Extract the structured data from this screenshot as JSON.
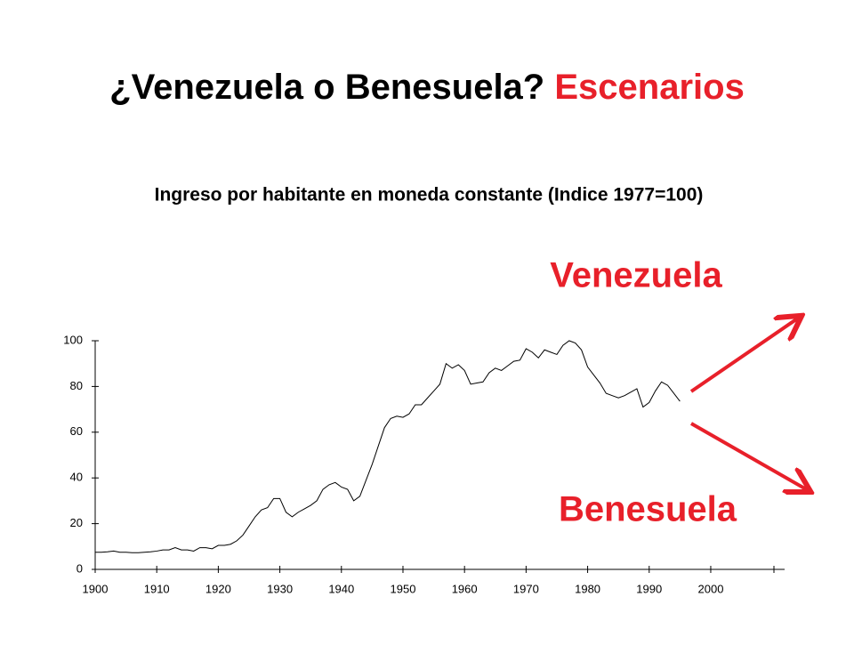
{
  "chart_data": {
    "type": "line",
    "title": "¿Venezuela o Benesuela?",
    "title_highlight": "Escenarios",
    "subtitle": "Ingreso por habitante en moneda constante (Indice 1977=100)",
    "annotations": [
      "Venezuela",
      "Benesuela"
    ],
    "x": [
      1900,
      1901,
      1902,
      1903,
      1904,
      1905,
      1906,
      1907,
      1908,
      1909,
      1910,
      1911,
      1912,
      1913,
      1914,
      1915,
      1916,
      1917,
      1918,
      1919,
      1920,
      1921,
      1922,
      1923,
      1924,
      1925,
      1926,
      1927,
      1928,
      1929,
      1930,
      1931,
      1932,
      1933,
      1934,
      1935,
      1936,
      1937,
      1938,
      1939,
      1940,
      1941,
      1942,
      1943,
      1944,
      1945,
      1946,
      1947,
      1948,
      1949,
      1950,
      1951,
      1952,
      1953,
      1954,
      1955,
      1956,
      1957,
      1958,
      1959,
      1960,
      1961,
      1962,
      1963,
      1964,
      1965,
      1966,
      1967,
      1968,
      1969,
      1970,
      1971,
      1972,
      1973,
      1974,
      1975,
      1976,
      1977,
      1978,
      1979,
      1980,
      1981,
      1982,
      1983,
      1984,
      1985,
      1986,
      1987,
      1988,
      1989,
      1990,
      1991,
      1992,
      1993,
      1994,
      1995
    ],
    "values": [
      7.5,
      7.5,
      7.7,
      8,
      7.5,
      7.5,
      7.3,
      7.3,
      7.5,
      7.7,
      8,
      8.5,
      8.5,
      9.5,
      8.5,
      8.5,
      8,
      9.5,
      9.5,
      9,
      10.5,
      10.5,
      11,
      12.5,
      15,
      19,
      23,
      26,
      27,
      31,
      31,
      25,
      23,
      25,
      26.5,
      28,
      30,
      35,
      37,
      38,
      36,
      35,
      30,
      32,
      39,
      46,
      54,
      62,
      66,
      67,
      66.5,
      68,
      72,
      72,
      75,
      78,
      81,
      90,
      88,
      89.5,
      87,
      81,
      81.5,
      82,
      86,
      88,
      87,
      89,
      91,
      91.5,
      96.5,
      95,
      92.5,
      96,
      95,
      94,
      98,
      100,
      99,
      96,
      88.5,
      85,
      81.5,
      77,
      76,
      75,
      76,
      77.5,
      79,
      71,
      73,
      78,
      82,
      80.5,
      77,
      73.5
    ],
    "color": "#000000",
    "xlim": [
      1900,
      2012
    ],
    "xticks": [
      1900,
      1910,
      1920,
      1930,
      1940,
      1950,
      1960,
      1970,
      1980,
      1990,
      2000
    ],
    "ylim": [
      0,
      100
    ],
    "yticks": [
      0,
      20,
      40,
      60,
      80,
      100
    ]
  }
}
